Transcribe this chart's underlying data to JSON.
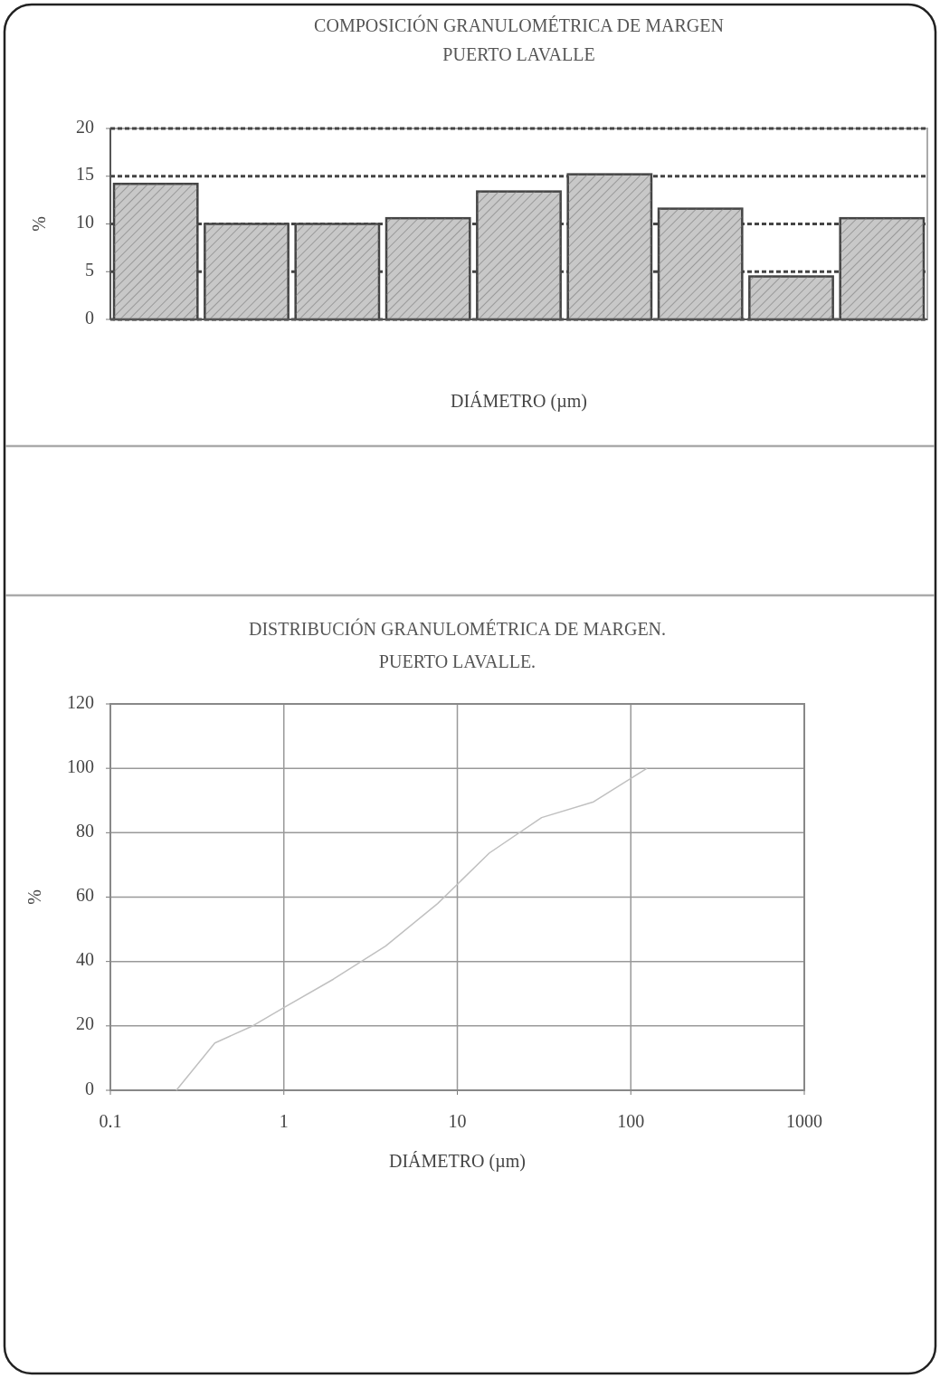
{
  "chart_data": [
    {
      "type": "bar",
      "title": "COMPOSICIÓN GRANULOMÉTRICA DE MARGEN",
      "subtitle": "PUERTO LAVALLE",
      "xlabel": "DIÁMETRO (µm)",
      "ylabel": "%",
      "categories": [
        null,
        null,
        null,
        null,
        null,
        null,
        null,
        null,
        null
      ],
      "values": [
        14.2,
        10,
        10,
        10.6,
        13.4,
        15.2,
        11.6,
        4.5,
        10.6
      ],
      "color": "#c8c8c8",
      "ylim": [
        0,
        20
      ],
      "yticks": [
        0,
        5,
        10,
        15,
        20
      ],
      "grid": "y"
    },
    {
      "type": "line",
      "title": "DISTRIBUCIÓN GRANULOMÉTRICA DE MARGEN.",
      "subtitle": "PUERTO LAVALLE.",
      "xlabel": "DIÁMETRO (µm)",
      "ylabel": "%",
      "series": [
        {
          "color": "#c0c0c0",
          "x": [
            0.24,
            0.4,
            0.65,
            1,
            1.93,
            3.86,
            7.7,
            15.3,
            30.6,
            61,
            124
          ],
          "values": [
            0,
            14.7,
            19.8,
            25.7,
            34.5,
            44.8,
            58,
            73.7,
            84.7,
            89.6,
            100
          ]
        }
      ],
      "log": "x",
      "xlim": [
        0.1,
        1000
      ],
      "xticks": [
        0.1,
        1,
        10,
        100,
        1000
      ],
      "ylim": [
        0,
        120
      ],
      "yticks": [
        0,
        20,
        40,
        60,
        80,
        100,
        120
      ],
      "grid": true,
      "marker": "none",
      "line_style": "solid"
    }
  ]
}
